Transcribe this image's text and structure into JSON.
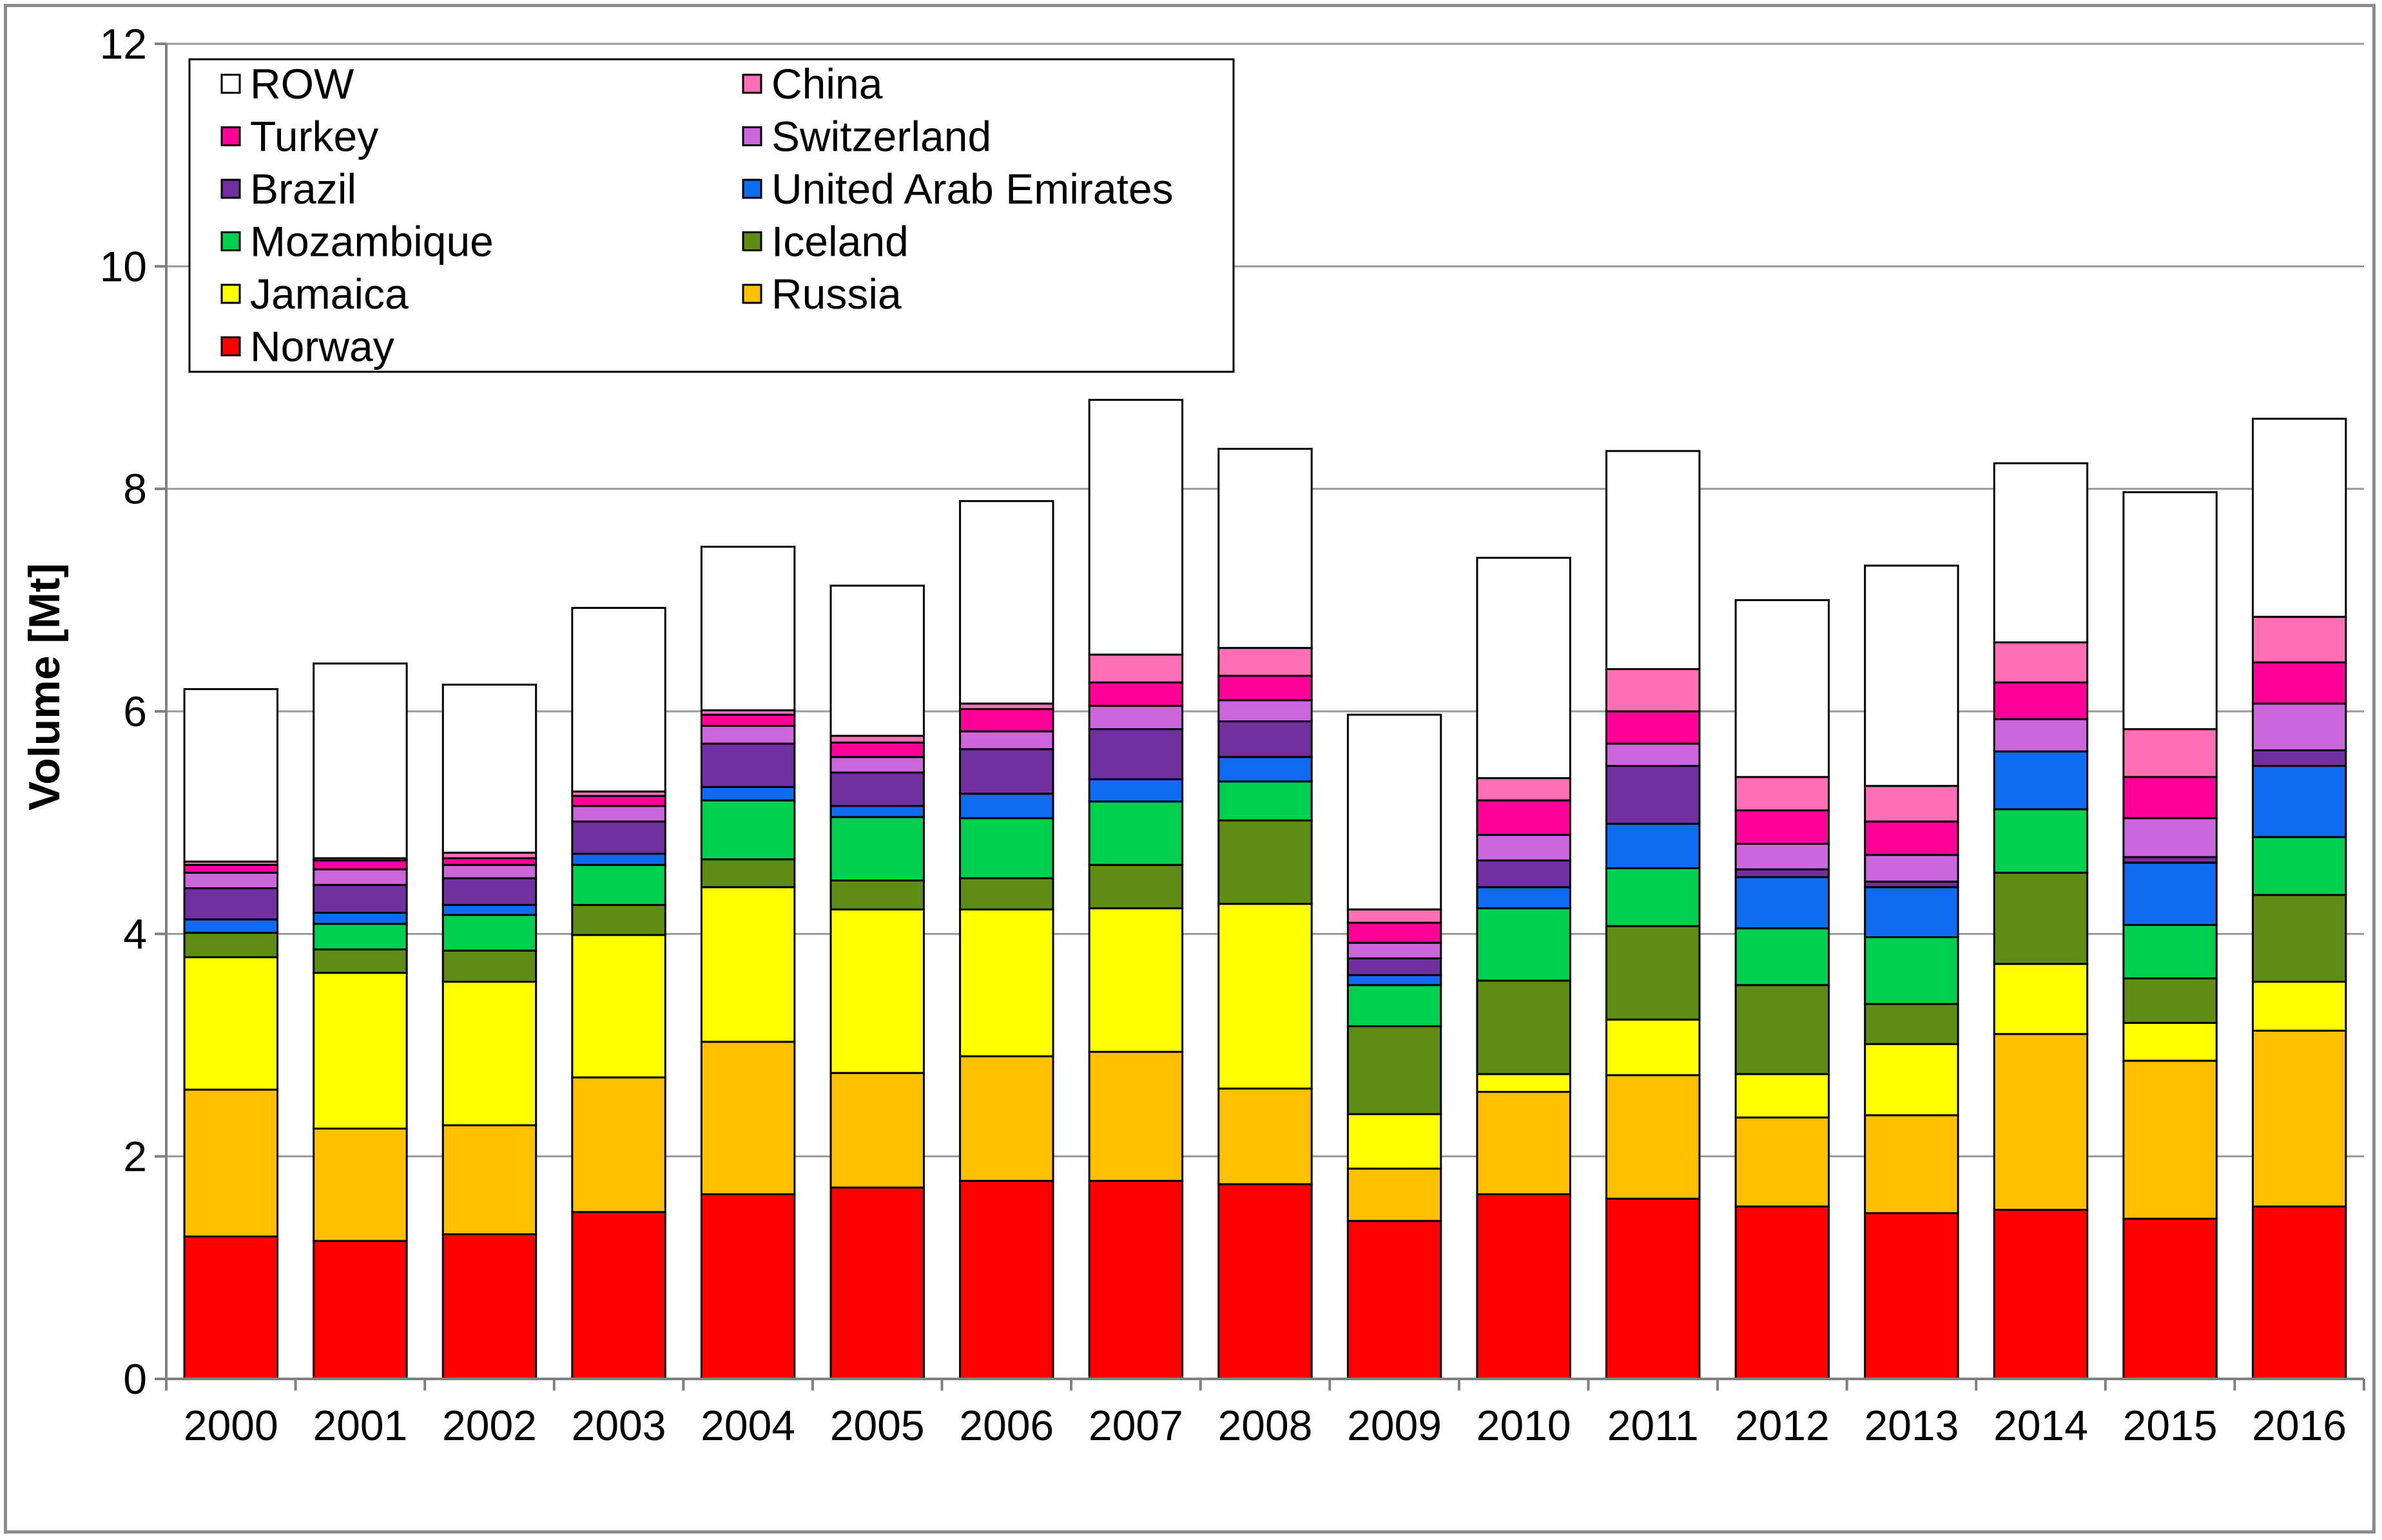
{
  "chart_data": {
    "type": "bar",
    "stacked": true,
    "title": "",
    "xlabel": "",
    "ylabel": "Volume [Mt]",
    "ylim": [
      0,
      12
    ],
    "yticks": [
      0,
      2,
      4,
      6,
      8,
      10,
      12
    ],
    "grid": true,
    "legend_position": "top-left",
    "categories": [
      "2000",
      "2001",
      "2002",
      "2003",
      "2004",
      "2005",
      "2006",
      "2007",
      "2008",
      "2009",
      "2010",
      "2011",
      "2012",
      "2013",
      "2014",
      "2015",
      "2016"
    ],
    "series": [
      {
        "name": "Norway",
        "color": "#ff0000",
        "values": [
          1.28,
          1.24,
          1.3,
          1.5,
          1.66,
          1.72,
          1.78,
          1.78,
          1.75,
          1.42,
          1.66,
          1.62,
          1.55,
          1.49,
          1.52,
          1.44,
          1.55
        ]
      },
      {
        "name": "Russia",
        "color": "#ffc000",
        "values": [
          1.32,
          1.01,
          0.98,
          1.21,
          1.37,
          1.03,
          1.12,
          1.16,
          0.86,
          0.47,
          0.92,
          1.11,
          0.8,
          0.88,
          1.58,
          1.42,
          1.58
        ]
      },
      {
        "name": "Jamaica",
        "color": "#ffff00",
        "values": [
          1.19,
          1.4,
          1.29,
          1.28,
          1.39,
          1.47,
          1.32,
          1.29,
          1.66,
          0.49,
          0.16,
          0.5,
          0.39,
          0.64,
          0.63,
          0.34,
          0.44
        ]
      },
      {
        "name": "Iceland",
        "color": "#5f8c14",
        "values": [
          0.22,
          0.21,
          0.28,
          0.27,
          0.25,
          0.26,
          0.28,
          0.39,
          0.75,
          0.79,
          0.84,
          0.84,
          0.8,
          0.36,
          0.82,
          0.4,
          0.78
        ]
      },
      {
        "name": "Mozambique",
        "color": "#00d050",
        "values": [
          0.0,
          0.23,
          0.32,
          0.36,
          0.53,
          0.57,
          0.54,
          0.57,
          0.35,
          0.37,
          0.65,
          0.52,
          0.51,
          0.6,
          0.57,
          0.48,
          0.52
        ]
      },
      {
        "name": "United Arab Emirates",
        "color": "#0f6cf0",
        "values": [
          0.12,
          0.1,
          0.09,
          0.1,
          0.12,
          0.1,
          0.22,
          0.2,
          0.22,
          0.09,
          0.19,
          0.4,
          0.46,
          0.45,
          0.52,
          0.56,
          0.64
        ]
      },
      {
        "name": "Brazil",
        "color": "#7030a0",
        "values": [
          0.28,
          0.25,
          0.24,
          0.29,
          0.39,
          0.3,
          0.4,
          0.45,
          0.32,
          0.15,
          0.24,
          0.52,
          0.07,
          0.05,
          0.0,
          0.05,
          0.14
        ]
      },
      {
        "name": "Switzerland",
        "color": "#cc66dd",
        "values": [
          0.14,
          0.14,
          0.12,
          0.14,
          0.16,
          0.14,
          0.16,
          0.21,
          0.19,
          0.14,
          0.23,
          0.2,
          0.23,
          0.24,
          0.29,
          0.35,
          0.42
        ]
      },
      {
        "name": "Turkey",
        "color": "#ff0099",
        "values": [
          0.07,
          0.08,
          0.06,
          0.09,
          0.1,
          0.13,
          0.2,
          0.21,
          0.22,
          0.18,
          0.31,
          0.29,
          0.3,
          0.3,
          0.33,
          0.37,
          0.37
        ]
      },
      {
        "name": "China",
        "color": "#ff6fb5",
        "values": [
          0.03,
          0.02,
          0.05,
          0.04,
          0.04,
          0.06,
          0.05,
          0.25,
          0.25,
          0.12,
          0.2,
          0.38,
          0.3,
          0.32,
          0.36,
          0.43,
          0.41
        ]
      },
      {
        "name": "ROW",
        "color": "#ffffff",
        "values": [
          1.55,
          1.75,
          1.51,
          1.65,
          1.47,
          1.35,
          1.82,
          2.29,
          1.79,
          1.75,
          1.98,
          1.96,
          1.59,
          1.98,
          1.61,
          2.13,
          1.78
        ]
      }
    ],
    "legend_order": [
      "ROW",
      "China",
      "Turkey",
      "Switzerland",
      "Brazil",
      "United Arab Emirates",
      "Mozambique",
      "Iceland",
      "Jamaica",
      "Russia",
      "Norway"
    ]
  }
}
